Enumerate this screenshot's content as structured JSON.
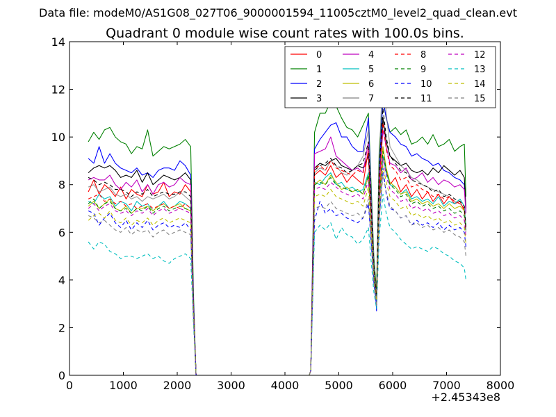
{
  "page": {
    "suptitle": "Data file: modeM0/AS1G08_027T06_9000001594_11005cztM0_level2_quad_clean.evt"
  },
  "chart_data": {
    "type": "line",
    "title": "Quadrant 0 module wise count rates with 100.0s bins.",
    "xlabel": "",
    "ylabel": "",
    "xlim": [
      0,
      8000
    ],
    "ylim": [
      0,
      14
    ],
    "x_offset_label": "+2.45343e8",
    "xticks": [
      "0",
      "1000",
      "2000",
      "3000",
      "4000",
      "5000",
      "6000",
      "7000",
      "8000"
    ],
    "yticks": [
      "0",
      "2",
      "4",
      "6",
      "8",
      "10",
      "12",
      "14"
    ],
    "grid": false,
    "legend_placement": "top-right",
    "x": [
      350,
      450,
      550,
      650,
      750,
      850,
      950,
      1050,
      1150,
      1250,
      1350,
      1450,
      1550,
      1650,
      1750,
      1850,
      1950,
      2050,
      2150,
      2250,
      2300,
      2350,
      2450,
      3000,
      4000,
      4450,
      4480,
      4550,
      4650,
      4750,
      4850,
      4950,
      5050,
      5150,
      5250,
      5350,
      5450,
      5550,
      5600,
      5650,
      5700,
      5750,
      5820,
      5880,
      5950,
      6050,
      6150,
      6250,
      6350,
      6450,
      6550,
      6650,
      6750,
      6850,
      6950,
      7050,
      7150,
      7250,
      7330,
      7360
    ],
    "series": [
      {
        "name": "0",
        "color": "#ff0000",
        "dash": false,
        "values": [
          7.7,
          8.2,
          7.6,
          8.0,
          7.8,
          7.5,
          7.9,
          7.4,
          7.8,
          7.6,
          7.5,
          8.0,
          7.6,
          7.7,
          8.1,
          7.5,
          7.7,
          7.6,
          8.0,
          7.7,
          3.0,
          0,
          0,
          0,
          0,
          0,
          0.2,
          8.4,
          8.6,
          8.4,
          8.8,
          8.3,
          8.5,
          8.1,
          8.4,
          8.2,
          8.0,
          9.5,
          6.5,
          4.5,
          3.4,
          7.5,
          9.6,
          8.6,
          8.0,
          8.3,
          7.7,
          8.0,
          7.5,
          7.8,
          7.4,
          7.7,
          7.3,
          7.6,
          7.2,
          7.5,
          7.2,
          7.3,
          6.9,
          6.2
        ]
      },
      {
        "name": "1",
        "color": "#008000",
        "dash": false,
        "values": [
          9.8,
          10.2,
          9.9,
          10.3,
          10.4,
          10.0,
          9.8,
          9.7,
          9.3,
          9.6,
          9.5,
          10.3,
          9.2,
          9.4,
          9.6,
          9.5,
          9.6,
          9.7,
          9.9,
          9.6,
          3.5,
          0,
          0,
          0,
          0,
          0,
          0.2,
          10.2,
          11.0,
          11.0,
          11.5,
          11.3,
          10.8,
          10.4,
          10.3,
          10.0,
          10.5,
          11.0,
          8.0,
          5.0,
          3.5,
          9.5,
          11.5,
          10.8,
          10.2,
          10.4,
          10.1,
          10.3,
          9.7,
          9.8,
          10.0,
          9.7,
          10.1,
          9.6,
          9.7,
          9.9,
          9.4,
          9.6,
          9.7,
          7.5
        ]
      },
      {
        "name": "2",
        "color": "#0000ff",
        "dash": false,
        "values": [
          9.1,
          8.9,
          9.6,
          8.9,
          9.3,
          8.9,
          8.7,
          8.6,
          8.5,
          8.7,
          8.4,
          8.5,
          8.3,
          8.6,
          8.7,
          8.7,
          8.6,
          9.0,
          8.8,
          8.4,
          3.2,
          0,
          0,
          0,
          0,
          0,
          0.2,
          9.5,
          9.9,
          10.2,
          10.5,
          10.6,
          10.0,
          10.0,
          9.6,
          9.4,
          9.4,
          10.8,
          7.6,
          4.7,
          2.7,
          8.6,
          11.6,
          10.8,
          10.2,
          10.0,
          9.7,
          9.6,
          9.2,
          9.3,
          9.1,
          9.0,
          8.8,
          8.9,
          8.6,
          8.5,
          8.3,
          8.2,
          8.0,
          6.9
        ]
      },
      {
        "name": "3",
        "color": "#000000",
        "dash": false,
        "values": [
          8.5,
          8.7,
          8.8,
          8.7,
          8.8,
          8.6,
          8.3,
          8.4,
          8.3,
          8.6,
          8.1,
          8.5,
          8.0,
          8.2,
          8.4,
          8.3,
          8.2,
          8.3,
          8.5,
          8.2,
          3.0,
          0,
          0,
          0,
          0,
          0,
          0.2,
          8.7,
          8.9,
          8.8,
          9.0,
          9.1,
          8.8,
          8.7,
          8.6,
          8.8,
          8.7,
          9.2,
          7.0,
          4.5,
          3.2,
          8.0,
          10.8,
          9.8,
          9.2,
          9.0,
          8.8,
          8.9,
          8.6,
          8.5,
          8.6,
          8.4,
          8.7,
          8.5,
          8.8,
          8.6,
          8.4,
          8.6,
          8.3,
          7.0
        ]
      },
      {
        "name": "4",
        "color": "#bf00bf",
        "dash": false,
        "values": [
          8.2,
          8.3,
          8.2,
          8.2,
          8.4,
          8.0,
          7.8,
          8.1,
          7.9,
          8.2,
          7.7,
          8.0,
          7.6,
          8.0,
          8.1,
          7.9,
          8.0,
          8.3,
          8.1,
          8.0,
          3.0,
          0,
          0,
          0,
          0,
          0,
          0.2,
          9.3,
          9.4,
          9.5,
          10.0,
          9.2,
          9.0,
          8.8,
          8.6,
          8.7,
          8.5,
          9.8,
          7.1,
          4.5,
          3.3,
          8.0,
          10.3,
          9.6,
          8.9,
          8.8,
          8.5,
          8.7,
          8.2,
          8.3,
          8.5,
          8.1,
          8.3,
          8.0,
          8.2,
          8.1,
          7.9,
          8.0,
          7.8,
          6.8
        ]
      },
      {
        "name": "5",
        "color": "#00bfbf",
        "dash": false,
        "values": [
          7.3,
          7.2,
          7.6,
          7.4,
          7.5,
          7.1,
          7.3,
          7.2,
          6.9,
          7.3,
          7.1,
          7.2,
          6.9,
          7.1,
          7.3,
          7.0,
          7.1,
          7.3,
          7.2,
          7.0,
          2.8,
          0,
          0,
          0,
          0,
          0,
          0.2,
          8.1,
          8.0,
          8.3,
          8.5,
          8.0,
          8.1,
          7.8,
          7.9,
          7.7,
          7.8,
          8.5,
          6.5,
          4.3,
          3.0,
          7.3,
          9.2,
          8.5,
          8.0,
          7.9,
          7.6,
          7.8,
          7.4,
          7.5,
          7.3,
          7.4,
          7.2,
          7.5,
          7.1,
          7.3,
          7.2,
          7.4,
          7.1,
          6.3
        ]
      },
      {
        "name": "6",
        "color": "#bfbf00",
        "dash": false,
        "values": [
          7.1,
          7.3,
          7.0,
          7.2,
          7.4,
          7.0,
          6.9,
          7.1,
          6.8,
          7.0,
          7.0,
          7.1,
          6.9,
          7.1,
          7.2,
          7.0,
          7.1,
          7.2,
          7.0,
          6.9,
          2.7,
          0,
          0,
          0,
          0,
          0,
          0.2,
          8.0,
          8.2,
          8.0,
          8.4,
          8.1,
          7.8,
          7.9,
          7.7,
          7.8,
          7.6,
          8.4,
          6.3,
          4.2,
          3.1,
          7.2,
          9.6,
          8.7,
          8.1,
          7.9,
          7.6,
          7.7,
          7.3,
          7.4,
          7.2,
          7.3,
          7.1,
          7.2,
          7.0,
          7.2,
          7.0,
          7.1,
          6.9,
          6.2
        ]
      },
      {
        "name": "7",
        "color": "#808080",
        "dash": false,
        "values": [
          7.9,
          8.0,
          7.7,
          7.8,
          7.9,
          7.6,
          7.5,
          7.6,
          7.4,
          7.5,
          7.3,
          7.5,
          7.4,
          7.5,
          7.6,
          7.4,
          7.5,
          7.7,
          7.5,
          7.3,
          2.8,
          0,
          0,
          0,
          0,
          0,
          0.2,
          8.5,
          8.7,
          8.6,
          9.0,
          8.8,
          8.5,
          8.4,
          8.6,
          8.8,
          9.2,
          10.3,
          7.5,
          4.8,
          3.2,
          9.0,
          13.0,
          11.0,
          9.6,
          9.2,
          8.8,
          8.6,
          8.3,
          8.2,
          8.0,
          7.9,
          7.8,
          7.7,
          7.6,
          7.5,
          7.3,
          7.2,
          7.0,
          6.0
        ]
      },
      {
        "name": "8",
        "color": "#ff0000",
        "dash": true,
        "values": [
          7.4,
          7.5,
          7.6,
          7.3,
          7.4,
          7.2,
          7.3,
          7.1,
          7.2,
          7.0,
          7.1,
          7.2,
          7.0,
          7.1,
          7.2,
          7.0,
          7.1,
          7.0,
          7.2,
          7.0,
          2.8,
          0,
          0,
          0,
          0,
          0,
          0.2,
          8.7,
          8.8,
          8.6,
          9.0,
          8.7,
          8.6,
          8.5,
          8.4,
          8.6,
          8.5,
          9.3,
          6.8,
          4.5,
          3.2,
          7.8,
          10.6,
          9.5,
          8.8,
          8.6,
          8.2,
          8.3,
          7.9,
          8.0,
          7.8,
          7.7,
          7.5,
          7.6,
          7.4,
          7.5,
          7.3,
          7.2,
          7.0,
          6.1
        ]
      },
      {
        "name": "9",
        "color": "#008000",
        "dash": true,
        "values": [
          7.2,
          7.4,
          7.0,
          7.2,
          7.3,
          7.0,
          6.9,
          7.0,
          6.8,
          7.0,
          6.9,
          7.1,
          6.8,
          7.0,
          7.1,
          6.9,
          7.0,
          7.1,
          7.0,
          6.9,
          2.7,
          0,
          0,
          0,
          0,
          0,
          0.2,
          8.0,
          8.1,
          8.0,
          8.3,
          8.0,
          7.9,
          7.8,
          7.7,
          7.8,
          7.6,
          8.4,
          6.3,
          4.3,
          3.1,
          7.3,
          9.4,
          8.6,
          8.0,
          7.8,
          7.5,
          7.6,
          7.2,
          7.3,
          7.1,
          7.2,
          7.0,
          7.1,
          6.9,
          7.0,
          6.8,
          6.9,
          6.7,
          6.0
        ]
      },
      {
        "name": "10",
        "color": "#0000ff",
        "dash": true,
        "values": [
          6.9,
          6.8,
          6.3,
          6.6,
          6.8,
          6.4,
          6.2,
          6.5,
          6.1,
          6.4,
          6.2,
          6.5,
          6.1,
          6.3,
          6.4,
          6.2,
          6.3,
          6.2,
          6.4,
          6.1,
          2.5,
          0,
          0,
          0,
          0,
          0,
          0.2,
          6.5,
          7.3,
          6.8,
          7.0,
          6.7,
          6.8,
          6.6,
          6.5,
          6.4,
          6.6,
          7.2,
          5.6,
          3.9,
          2.9,
          6.5,
          8.7,
          7.6,
          7.0,
          6.9,
          6.6,
          6.7,
          6.3,
          6.5,
          6.3,
          6.4,
          6.2,
          6.4,
          6.1,
          6.3,
          6.1,
          6.2,
          6.0,
          5.4
        ]
      },
      {
        "name": "11",
        "color": "#000000",
        "dash": true,
        "values": [
          8.3,
          8.2,
          8.0,
          8.1,
          8.0,
          7.8,
          7.8,
          7.7,
          7.5,
          7.7,
          7.6,
          7.8,
          7.5,
          7.6,
          7.7,
          7.6,
          7.6,
          7.7,
          7.7,
          7.5,
          2.9,
          0,
          0,
          0,
          0,
          0,
          0.2,
          8.6,
          8.8,
          8.9,
          9.1,
          8.8,
          8.7,
          8.5,
          8.6,
          8.8,
          8.9,
          9.8,
          7.2,
          4.6,
          3.2,
          8.6,
          11.2,
          10.0,
          9.2,
          8.9,
          8.6,
          8.5,
          8.2,
          8.1,
          8.0,
          7.9,
          7.7,
          7.8,
          7.5,
          7.6,
          7.4,
          7.3,
          7.1,
          6.2
        ]
      },
      {
        "name": "12",
        "color": "#bf00bf",
        "dash": true,
        "values": [
          7.0,
          7.2,
          6.9,
          7.1,
          7.2,
          6.9,
          6.8,
          6.9,
          6.7,
          6.9,
          6.8,
          7.0,
          6.7,
          6.9,
          7.0,
          6.8,
          6.9,
          7.0,
          6.9,
          6.8,
          2.7,
          0,
          0,
          0,
          0,
          0,
          0.2,
          7.8,
          7.9,
          7.8,
          8.1,
          7.9,
          7.7,
          7.6,
          7.5,
          7.6,
          7.4,
          8.2,
          6.2,
          4.2,
          3.0,
          7.1,
          9.1,
          8.4,
          7.8,
          7.6,
          7.3,
          7.4,
          7.0,
          7.1,
          6.9,
          7.0,
          6.8,
          6.9,
          6.7,
          6.8,
          6.6,
          6.7,
          6.5,
          5.8
        ]
      },
      {
        "name": "13",
        "color": "#00bfbf",
        "dash": true,
        "values": [
          5.6,
          5.3,
          5.6,
          5.5,
          5.2,
          5.1,
          4.9,
          5.0,
          5.0,
          4.9,
          5.0,
          5.1,
          4.9,
          5.0,
          4.8,
          4.7,
          4.9,
          5.0,
          5.1,
          4.9,
          2.2,
          0,
          0,
          0,
          0,
          0,
          0.2,
          6.0,
          6.3,
          6.1,
          6.4,
          5.7,
          6.2,
          5.9,
          5.8,
          5.5,
          5.7,
          6.2,
          4.8,
          3.5,
          2.8,
          5.8,
          7.6,
          6.8,
          6.2,
          6.0,
          5.7,
          5.5,
          5.3,
          5.4,
          5.3,
          5.2,
          5.4,
          5.3,
          5.1,
          5.0,
          4.8,
          4.7,
          4.5,
          4.0
        ]
      },
      {
        "name": "14",
        "color": "#bfbf00",
        "dash": true,
        "values": [
          6.5,
          6.7,
          6.8,
          6.6,
          6.9,
          6.5,
          6.4,
          6.6,
          6.3,
          6.5,
          6.4,
          6.6,
          6.3,
          6.5,
          6.6,
          6.4,
          6.5,
          6.6,
          6.5,
          6.4,
          2.6,
          0,
          0,
          0,
          0,
          0,
          0.2,
          7.5,
          7.6,
          7.5,
          7.8,
          7.5,
          7.4,
          7.3,
          7.2,
          7.3,
          7.1,
          7.9,
          6.0,
          4.1,
          3.0,
          6.9,
          8.8,
          8.1,
          7.5,
          7.3,
          7.0,
          7.1,
          6.7,
          6.8,
          6.6,
          6.7,
          6.5,
          6.6,
          6.4,
          6.5,
          6.3,
          6.4,
          6.2,
          5.5
        ]
      },
      {
        "name": "15",
        "color": "#808080",
        "dash": true,
        "values": [
          6.7,
          6.6,
          6.4,
          6.5,
          6.3,
          6.1,
          6.0,
          6.2,
          5.9,
          6.1,
          6.0,
          6.1,
          5.8,
          6.0,
          6.1,
          5.9,
          6.0,
          6.1,
          6.0,
          5.9,
          2.4,
          0,
          0,
          0,
          0,
          0,
          0.2,
          7.0,
          7.1,
          7.0,
          7.3,
          7.0,
          6.9,
          6.8,
          6.7,
          6.8,
          6.6,
          7.4,
          5.6,
          3.9,
          2.9,
          6.5,
          8.4,
          7.7,
          7.1,
          6.9,
          6.6,
          6.7,
          6.3,
          6.4,
          6.2,
          6.3,
          6.1,
          6.2,
          6.0,
          6.1,
          5.9,
          5.8,
          5.6,
          5.0
        ]
      }
    ]
  }
}
